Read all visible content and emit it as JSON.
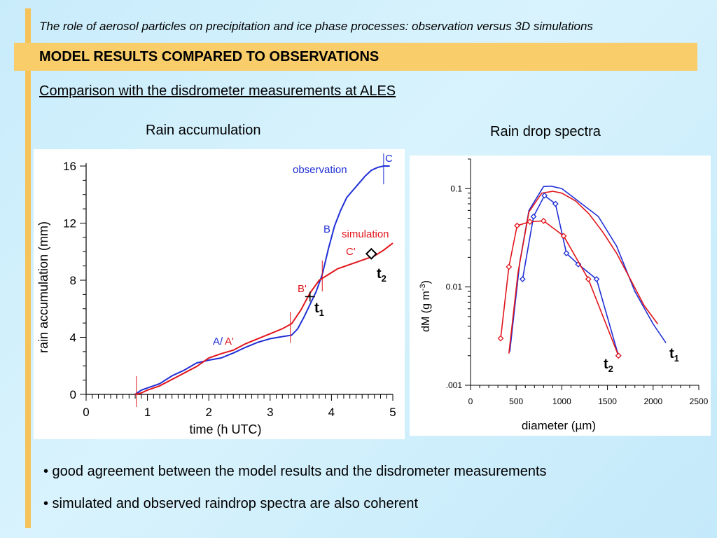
{
  "header": {
    "title": "The role of aerosol particles on precipitation and ice phase processes: observation versus 3D simulations",
    "section": "MODEL RESULTS COMPARED TO OBSERVATIONS",
    "subtitle": "Comparison with the disdrometer measurements at ALES"
  },
  "panels": {
    "left_title": "Rain accumulation",
    "right_title": "Rain drop spectra"
  },
  "bullets": [
    "• good agreement between the model results and the disdrometer measurements",
    "• simulated and observed raindrop spectra are also coherent"
  ],
  "colors": {
    "observation": "#1f2fd6",
    "simulation": "#e0151b",
    "accent_band": "#f8cd6a"
  },
  "chart_data": [
    {
      "type": "line",
      "xlabel": "time (h UTC)",
      "ylabel": "rain accumulation (mm)",
      "xlim": [
        0,
        5
      ],
      "ylim": [
        0,
        16
      ],
      "xticks": [
        "0",
        "1",
        "2",
        "3",
        "4",
        "5"
      ],
      "yticks": [
        "0",
        "4",
        "8",
        "12",
        "16"
      ],
      "series": [
        {
          "name": "observation",
          "x": [
            0.8,
            0.9,
            1.0,
            1.2,
            1.4,
            1.6,
            1.8,
            2.0,
            2.2,
            2.4,
            2.6,
            2.8,
            3.0,
            3.2,
            3.35,
            3.45,
            3.55,
            3.65,
            3.75,
            3.85,
            3.95,
            4.05,
            4.15,
            4.25,
            4.35,
            4.45,
            4.55,
            4.65,
            4.75,
            4.85,
            4.95
          ],
          "y": [
            0.0,
            0.3,
            0.45,
            0.75,
            1.3,
            1.7,
            2.2,
            2.4,
            2.55,
            2.9,
            3.3,
            3.65,
            3.9,
            4.05,
            4.15,
            4.6,
            5.4,
            6.3,
            7.2,
            8.4,
            10.2,
            11.8,
            12.9,
            13.8,
            14.3,
            14.8,
            15.3,
            15.7,
            15.9,
            16.0,
            16.0
          ]
        },
        {
          "name": "simulation",
          "x": [
            0.8,
            0.9,
            1.0,
            1.2,
            1.4,
            1.6,
            1.8,
            2.0,
            2.2,
            2.4,
            2.6,
            2.8,
            3.0,
            3.2,
            3.35,
            3.5,
            3.65,
            3.8,
            3.95,
            4.1,
            4.3,
            4.5,
            4.7,
            4.85,
            5.0
          ],
          "y": [
            0.0,
            0.1,
            0.3,
            0.6,
            1.05,
            1.5,
            1.95,
            2.55,
            2.85,
            3.1,
            3.55,
            3.9,
            4.25,
            4.6,
            4.95,
            5.9,
            7.1,
            8.0,
            8.4,
            8.8,
            9.1,
            9.4,
            9.7,
            10.1,
            10.6
          ]
        }
      ],
      "markers": {
        "vertical_ticks_at": [
          0.82,
          3.33,
          3.85,
          4.85
        ],
        "t1": {
          "x": 3.65,
          "y": 6.85
        },
        "t2": {
          "x": 4.65,
          "y": 9.85
        }
      },
      "annotations": [
        "observation",
        "simulation",
        "C",
        "B",
        "C'",
        "B'",
        "A/",
        "A'",
        "t",
        "1",
        "t",
        "2"
      ]
    },
    {
      "type": "line",
      "xlabel": "diameter (µm)",
      "ylabel": "dM (g m-3)",
      "xlim": [
        0,
        2500
      ],
      "ylim": [
        0.001,
        0.2
      ],
      "yscale": "log",
      "xticks": [
        "0",
        "500",
        "1000",
        "1500",
        "2000",
        "2500"
      ],
      "yticks": [
        ".001",
        "0.01",
        "0.1"
      ],
      "series": [
        {
          "name": "observation t1",
          "x": [
            430,
            540,
            640,
            800,
            880,
            1000,
            1100,
            1400,
            1600,
            1800,
            2000,
            2140
          ],
          "y": [
            0.0022,
            0.018,
            0.06,
            0.105,
            0.106,
            0.1,
            0.085,
            0.052,
            0.026,
            0.009,
            0.0042,
            0.0027
          ]
        },
        {
          "name": "simulation t1",
          "x": [
            420,
            520,
            640,
            780,
            900,
            1000,
            1150,
            1300,
            1450,
            1600,
            1750,
            1900,
            2050
          ],
          "y": [
            0.0021,
            0.014,
            0.058,
            0.09,
            0.094,
            0.09,
            0.075,
            0.055,
            0.036,
            0.022,
            0.012,
            0.0065,
            0.0042
          ]
        },
        {
          "name": "observation t2",
          "x": [
            570,
            690,
            810,
            930,
            1050,
            1180,
            1380,
            1620
          ],
          "y": [
            0.012,
            0.052,
            0.085,
            0.07,
            0.022,
            0.017,
            0.012,
            0.002
          ]
        },
        {
          "name": "simulation t2",
          "x": [
            330,
            420,
            510,
            650,
            800,
            1020,
            1290,
            1620
          ],
          "y": [
            0.003,
            0.016,
            0.042,
            0.046,
            0.047,
            0.033,
            0.012,
            0.002
          ]
        }
      ],
      "annotations": [
        "t",
        "1",
        "t",
        "2"
      ]
    }
  ]
}
